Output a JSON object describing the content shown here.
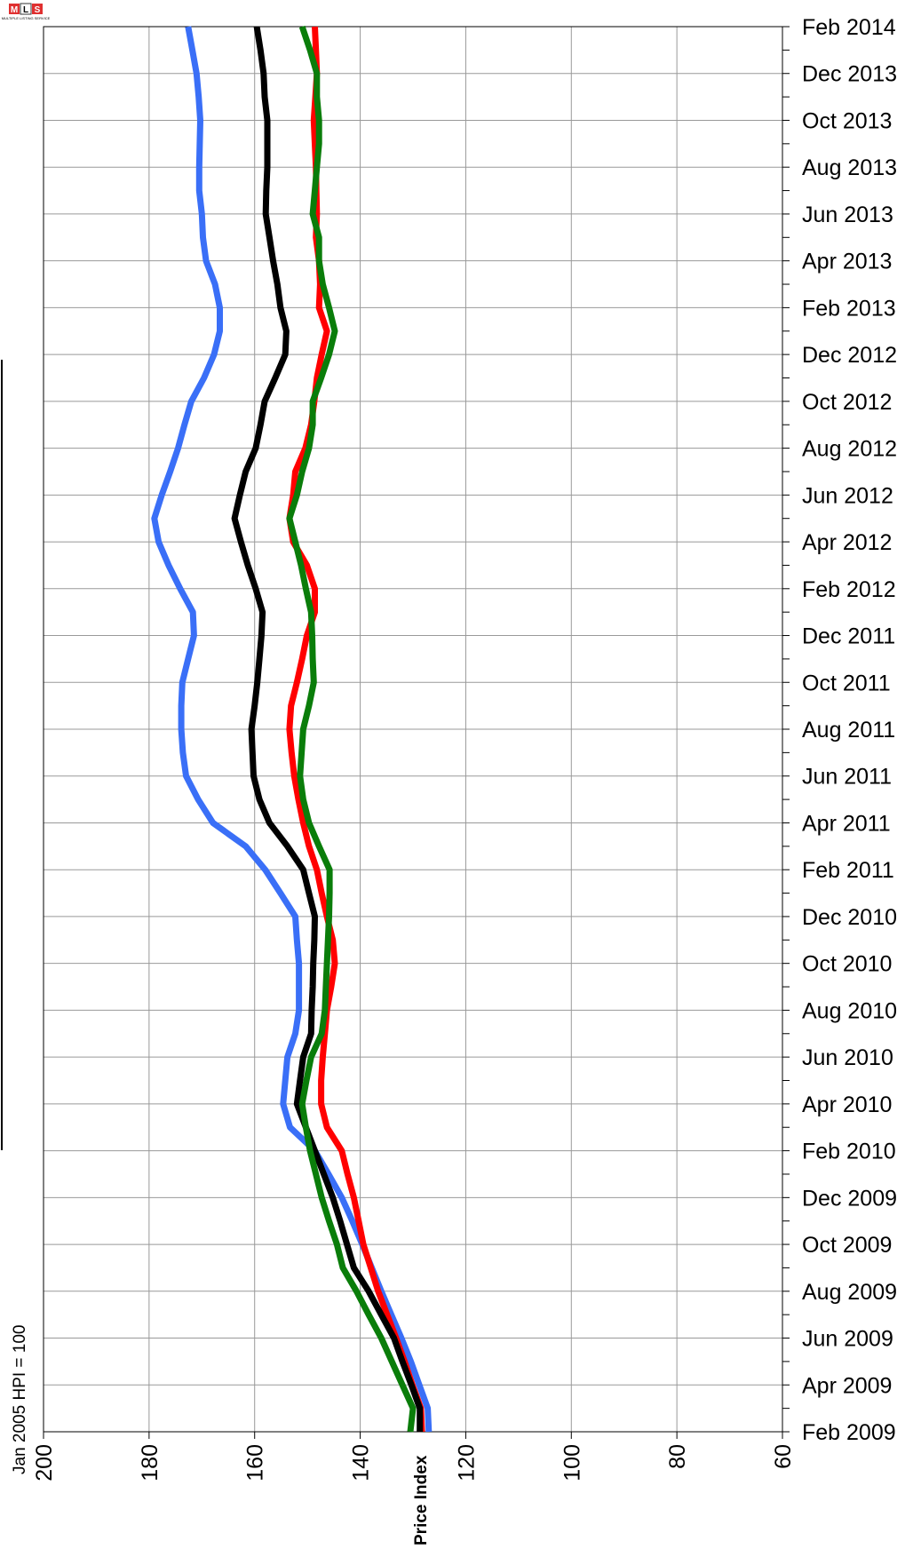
{
  "chart_data": {
    "type": "line",
    "orientation": "vertical",
    "x_label": "Price Index",
    "note": "Jan 2005 HPI = 100",
    "logo": {
      "letters": [
        "M",
        "L",
        "S"
      ],
      "caption": "MULTIPLE LISTING SERVICE"
    },
    "categories": [
      "Feb 2009",
      null,
      "Apr 2009",
      null,
      "Jun 2009",
      null,
      "Aug 2009",
      null,
      "Oct 2009",
      null,
      "Dec 2009",
      null,
      "Feb 2010",
      null,
      "Apr 2010",
      null,
      "Jun 2010",
      null,
      "Aug 2010",
      null,
      "Oct 2010",
      null,
      "Dec 2010",
      null,
      "Feb 2011",
      null,
      "Apr 2011",
      null,
      "Jun 2011",
      null,
      "Aug 2011",
      null,
      "Oct 2011",
      null,
      "Dec 2011",
      null,
      "Feb 2012",
      null,
      "Apr 2012",
      null,
      "Jun 2012",
      null,
      "Aug 2012",
      null,
      "Oct 2012",
      null,
      "Dec 2012",
      null,
      "Feb 2013",
      null,
      "Apr 2013",
      null,
      "Jun 2013",
      null,
      "Aug 2013",
      null,
      "Oct 2013",
      null,
      "Dec 2013",
      null,
      "Feb 2014"
    ],
    "series": [
      {
        "color": "#3a6ff7",
        "values": [
          127.0,
          127.2,
          128.8,
          130.4,
          132.2,
          134.1,
          136.0,
          137.8,
          139.6,
          141.5,
          143.5,
          146.0,
          148.6,
          153.3,
          154.6,
          154.2,
          153.8,
          152.3,
          151.6,
          151.6,
          151.6,
          152.0,
          152.3,
          155.1,
          158.0,
          161.7,
          167.9,
          170.7,
          173.0,
          173.6,
          173.9,
          173.9,
          173.7,
          172.6,
          171.5,
          171.7,
          174.1,
          176.3,
          178.2,
          179.0,
          177.6,
          176.0,
          174.5,
          173.3,
          172.0,
          169.6,
          167.7,
          166.6,
          166.6,
          167.5,
          169.2,
          169.8,
          170.0,
          170.5,
          170.5,
          170.4,
          170.3,
          170.6,
          171.0,
          171.8,
          172.6
        ]
      },
      {
        "color": "#ff0000",
        "values": [
          128.3,
          128.5,
          130.1,
          131.6,
          133.2,
          134.9,
          136.6,
          138.0,
          139.4,
          140.3,
          141.2,
          142.4,
          143.5,
          146.3,
          147.4,
          147.4,
          147.1,
          146.7,
          146.3,
          145.5,
          144.8,
          145.2,
          146.3,
          147.3,
          148.2,
          149.7,
          150.8,
          151.7,
          152.5,
          153.0,
          153.4,
          153.1,
          152.0,
          151.0,
          150.1,
          148.6,
          148.6,
          150.1,
          152.7,
          153.4,
          152.7,
          152.3,
          150.4,
          149.3,
          148.7,
          148.2,
          147.3,
          146.3,
          147.8,
          147.6,
          147.8,
          148.4,
          148.2,
          148.3,
          148.4,
          148.6,
          148.8,
          148.5,
          148.2,
          148.4,
          148.6
        ]
      },
      {
        "color": "#000000",
        "values": [
          128.7,
          128.7,
          130.3,
          132.0,
          133.6,
          136.0,
          138.4,
          141.2,
          142.5,
          143.8,
          145.2,
          146.9,
          148.6,
          150.3,
          152.0,
          151.4,
          150.8,
          149.3,
          149.2,
          149.0,
          148.9,
          148.7,
          148.6,
          149.7,
          150.8,
          153.8,
          157.2,
          159.1,
          160.2,
          160.4,
          160.6,
          160.0,
          159.5,
          159.1,
          158.7,
          158.5,
          159.8,
          161.3,
          162.6,
          163.8,
          162.8,
          161.7,
          159.8,
          158.9,
          158.1,
          156.1,
          154.2,
          154.0,
          155.1,
          155.7,
          156.5,
          157.2,
          157.9,
          157.8,
          157.6,
          157.6,
          157.6,
          158.1,
          158.3,
          158.9,
          159.6
        ]
      },
      {
        "color": "#0a7d0a",
        "values": [
          130.5,
          130.0,
          132.0,
          134.0,
          136.0,
          138.4,
          140.7,
          143.3,
          144.4,
          145.9,
          147.3,
          148.4,
          149.5,
          150.3,
          151.0,
          150.2,
          149.3,
          147.3,
          146.7,
          146.5,
          146.3,
          146.1,
          145.9,
          145.8,
          145.8,
          147.8,
          149.7,
          150.8,
          151.4,
          151.1,
          150.8,
          149.7,
          148.8,
          149.0,
          149.1,
          149.3,
          150.3,
          151.2,
          152.3,
          153.4,
          152.0,
          151.0,
          149.7,
          149.0,
          149.0,
          147.4,
          145.9,
          144.8,
          145.9,
          147.1,
          147.8,
          147.8,
          149.0,
          148.6,
          148.2,
          147.8,
          147.8,
          148.2,
          148.2,
          149.5,
          151.0
        ]
      }
    ],
    "xlim": [
      200,
      60
    ],
    "xticks": [
      200,
      180,
      160,
      140,
      120,
      100,
      80,
      60
    ],
    "grid": true
  }
}
